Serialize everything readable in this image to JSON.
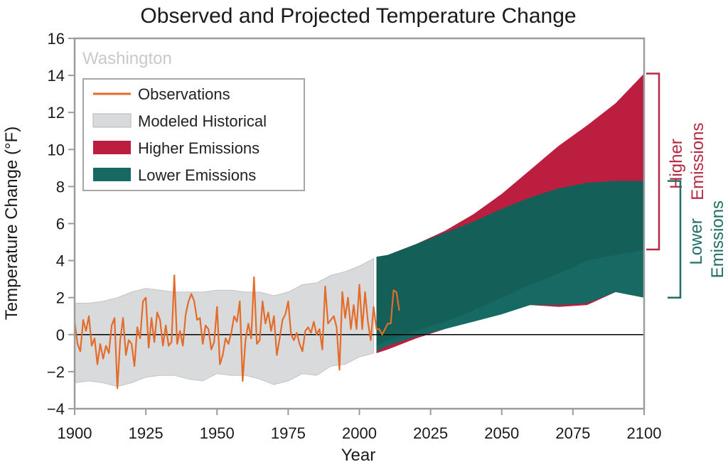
{
  "chart_data": {
    "type": "area",
    "title": "Observed and Projected Temperature Change",
    "region": "Washington",
    "xlabel": "Year",
    "ylabel": "Temperature Change (°F)",
    "xlim": [
      1900,
      2100
    ],
    "ylim": [
      -4,
      16
    ],
    "xticks": [
      1900,
      1925,
      1950,
      1975,
      2000,
      2025,
      2050,
      2075,
      2100
    ],
    "xtick_labels": [
      "1900",
      "1925",
      "1950",
      "1975",
      "2000",
      "2025",
      "2050",
      "2075",
      "2100"
    ],
    "yticks": [
      -4,
      -2,
      0,
      2,
      4,
      6,
      8,
      10,
      12,
      14,
      16
    ],
    "ytick_labels": [
      "−4",
      "−2",
      "0",
      "2",
      "4",
      "6",
      "8",
      "10",
      "12",
      "14",
      "16"
    ],
    "grid": false,
    "legend_position": "top-left",
    "legend": [
      {
        "label": "Observations",
        "kind": "line",
        "color": "#e46c2a"
      },
      {
        "label": "Modeled Historical",
        "kind": "patch",
        "color": "#d9dadb"
      },
      {
        "label": "Higher Emissions",
        "kind": "patch",
        "color": "#bb1e3e"
      },
      {
        "label": "Lower Emissions",
        "kind": "patch",
        "color": "#166a63"
      }
    ],
    "series": [
      {
        "name": "Modeled Historical",
        "kind": "band",
        "color": "#d9dadb",
        "x": [
          1900,
          1905,
          1910,
          1915,
          1920,
          1925,
          1930,
          1935,
          1940,
          1945,
          1950,
          1955,
          1960,
          1965,
          1970,
          1975,
          1980,
          1985,
          1990,
          1995,
          2000,
          2005
        ],
        "low": [
          -2.6,
          -2.5,
          -2.6,
          -2.8,
          -2.6,
          -2.3,
          -2.2,
          -2.2,
          -2.4,
          -2.5,
          -2.1,
          -2.2,
          -2.2,
          -2.4,
          -2.7,
          -2.5,
          -2.1,
          -2.2,
          -1.7,
          -1.6,
          -1.2,
          -1.0
        ],
        "high": [
          1.7,
          1.7,
          1.8,
          2.0,
          2.3,
          2.5,
          2.4,
          2.3,
          2.3,
          2.3,
          2.4,
          2.4,
          2.3,
          2.3,
          2.1,
          2.3,
          2.7,
          2.8,
          3.2,
          3.4,
          3.7,
          4.1
        ]
      },
      {
        "name": "Higher Emissions",
        "kind": "band",
        "color": "#bb1e3e",
        "x": [
          2006,
          2010,
          2020,
          2030,
          2040,
          2050,
          2060,
          2070,
          2080,
          2090,
          2100
        ],
        "low": [
          -1.0,
          -0.8,
          -0.2,
          0.3,
          0.9,
          1.3,
          1.6,
          1.5,
          1.6,
          2.3,
          2.0
        ],
        "high": [
          4.2,
          4.3,
          4.9,
          5.6,
          6.5,
          7.6,
          8.9,
          10.2,
          11.3,
          12.5,
          14.1
        ]
      },
      {
        "name": "Lower Emissions",
        "kind": "band",
        "color": "#166a63",
        "x": [
          2006,
          2010,
          2020,
          2030,
          2040,
          2050,
          2060,
          2070,
          2080,
          2090,
          2100
        ],
        "low": [
          -0.9,
          -0.6,
          -0.1,
          0.3,
          0.7,
          1.1,
          1.6,
          1.6,
          1.7,
          2.3,
          2.0
        ],
        "high": [
          4.2,
          4.3,
          4.9,
          5.5,
          6.1,
          6.8,
          7.4,
          7.9,
          8.2,
          8.3,
          8.3
        ]
      },
      {
        "name": "Lower Emissions inner",
        "kind": "band",
        "color": "#146059",
        "x": [
          2006,
          2010,
          2020,
          2030,
          2040,
          2050,
          2060,
          2070,
          2080,
          2090,
          2100
        ],
        "low": [
          -0.6,
          -0.3,
          0.2,
          0.7,
          1.3,
          2.0,
          2.7,
          3.3,
          4.0,
          4.3,
          4.6
        ],
        "high": [
          4.2,
          4.3,
          4.9,
          5.5,
          6.1,
          6.8,
          7.4,
          7.9,
          8.2,
          8.3,
          8.3
        ]
      },
      {
        "name": "Observations",
        "kind": "line",
        "color": "#e46c2a",
        "x": [
          1900,
          1901,
          1902,
          1903,
          1904,
          1905,
          1906,
          1907,
          1908,
          1909,
          1910,
          1911,
          1912,
          1913,
          1914,
          1915,
          1916,
          1917,
          1918,
          1919,
          1920,
          1921,
          1922,
          1923,
          1924,
          1925,
          1926,
          1927,
          1928,
          1929,
          1930,
          1931,
          1932,
          1933,
          1934,
          1935,
          1936,
          1937,
          1938,
          1939,
          1940,
          1941,
          1942,
          1943,
          1944,
          1945,
          1946,
          1947,
          1948,
          1949,
          1950,
          1951,
          1952,
          1953,
          1954,
          1955,
          1956,
          1957,
          1958,
          1959,
          1960,
          1961,
          1962,
          1963,
          1964,
          1965,
          1966,
          1967,
          1968,
          1969,
          1970,
          1971,
          1972,
          1973,
          1974,
          1975,
          1976,
          1977,
          1978,
          1979,
          1980,
          1981,
          1982,
          1983,
          1984,
          1985,
          1986,
          1987,
          1988,
          1989,
          1990,
          1991,
          1992,
          1993,
          1994,
          1995,
          1996,
          1997,
          1998,
          1999,
          2000,
          2001,
          2002,
          2003,
          2004,
          2005,
          2006,
          2007,
          2008,
          2009,
          2010,
          2011,
          2012,
          2013,
          2014
        ],
        "y": [
          0.7,
          -0.5,
          -0.9,
          0.8,
          0.2,
          1.0,
          -0.6,
          -0.2,
          -1.6,
          -0.5,
          -1.3,
          -0.6,
          -1.0,
          0.5,
          0.9,
          -2.9,
          -0.3,
          0.9,
          -1.1,
          -0.3,
          -0.5,
          -1.7,
          0.4,
          -0.2,
          1.8,
          2.0,
          -0.7,
          0.9,
          -0.4,
          1.2,
          0.8,
          -0.6,
          0.5,
          -0.6,
          -0.4,
          3.2,
          -0.5,
          0.2,
          -0.6,
          1.1,
          1.8,
          2.2,
          1.8,
          0.8,
          0.9,
          -0.5,
          0.5,
          0.3,
          -0.8,
          -0.4,
          1.5,
          -1.6,
          -1.1,
          -0.2,
          -0.5,
          0.1,
          1.0,
          0.7,
          1.8,
          -2.5,
          -0.3,
          0.6,
          -0.2,
          3.1,
          -0.5,
          -0.3,
          1.8,
          0.6,
          1.2,
          0.2,
          1.0,
          -1.1,
          -0.2,
          0.8,
          1.1,
          1.8,
          0.0,
          -0.3,
          0.1,
          -0.5,
          -0.9,
          0.2,
          0.4,
          0.1,
          0.7,
          0.0,
          0.3,
          -0.8,
          2.6,
          0.6,
          0.8,
          1.0,
          0.4,
          -1.9,
          2.3,
          0.9,
          2.0,
          0.3,
          1.6,
          0.3,
          2.7,
          0.3,
          2.3,
          0.7,
          -0.3,
          1.5,
          0.3,
          0.3,
          0.0,
          0.3,
          0.6,
          0.6,
          2.4,
          2.3,
          1.3
        ]
      }
    ],
    "annotations": [
      {
        "label": "Higher Emissions",
        "lines": [
          "Higher",
          "Emissions"
        ],
        "range": [
          4.6,
          14.1
        ],
        "color": "#b52943"
      },
      {
        "label": "Lower Emissions",
        "lines": [
          "Lower",
          "Emissions"
        ],
        "range": [
          2.0,
          8.3
        ],
        "color": "#1f6f66"
      }
    ]
  }
}
